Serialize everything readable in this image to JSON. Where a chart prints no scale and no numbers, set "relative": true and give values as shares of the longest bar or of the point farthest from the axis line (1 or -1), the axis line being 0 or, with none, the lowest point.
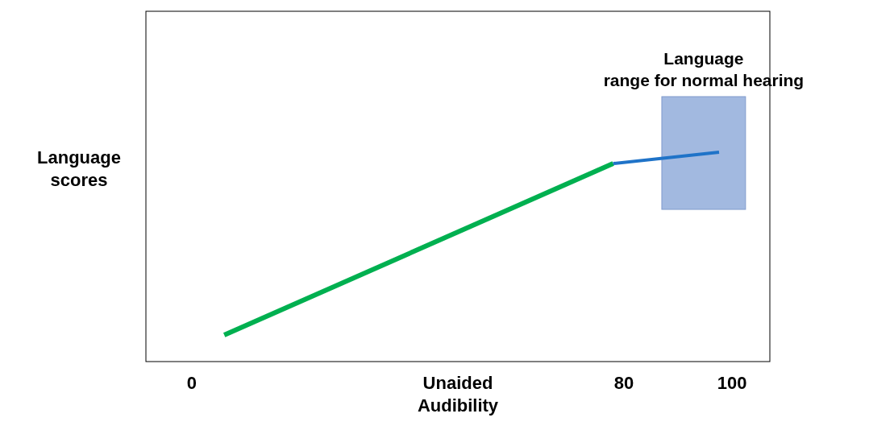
{
  "chart_data": {
    "type": "line",
    "relative": true,
    "xlabel": "Unaided Audibility",
    "ylabel": "Language scores",
    "xlim": [
      -8.5,
      107
    ],
    "xticks": [
      0,
      80,
      100
    ],
    "line_style": "solid",
    "tick_labels": "x",
    "series": [
      {
        "color": "#00b050",
        "x": [
          6,
          78
        ],
        "values": [
          0.127,
          0.946
        ]
      },
      {
        "color": "#1f73c8",
        "x": [
          78,
          97.6
        ],
        "values": [
          0.946,
          1
        ]
      }
    ],
    "bands": [
      {
        "axis": "x",
        "from": 87,
        "to": 102.5,
        "label": "Language range for normal hearing",
        "color": "#a2b9e0"
      }
    ]
  }
}
